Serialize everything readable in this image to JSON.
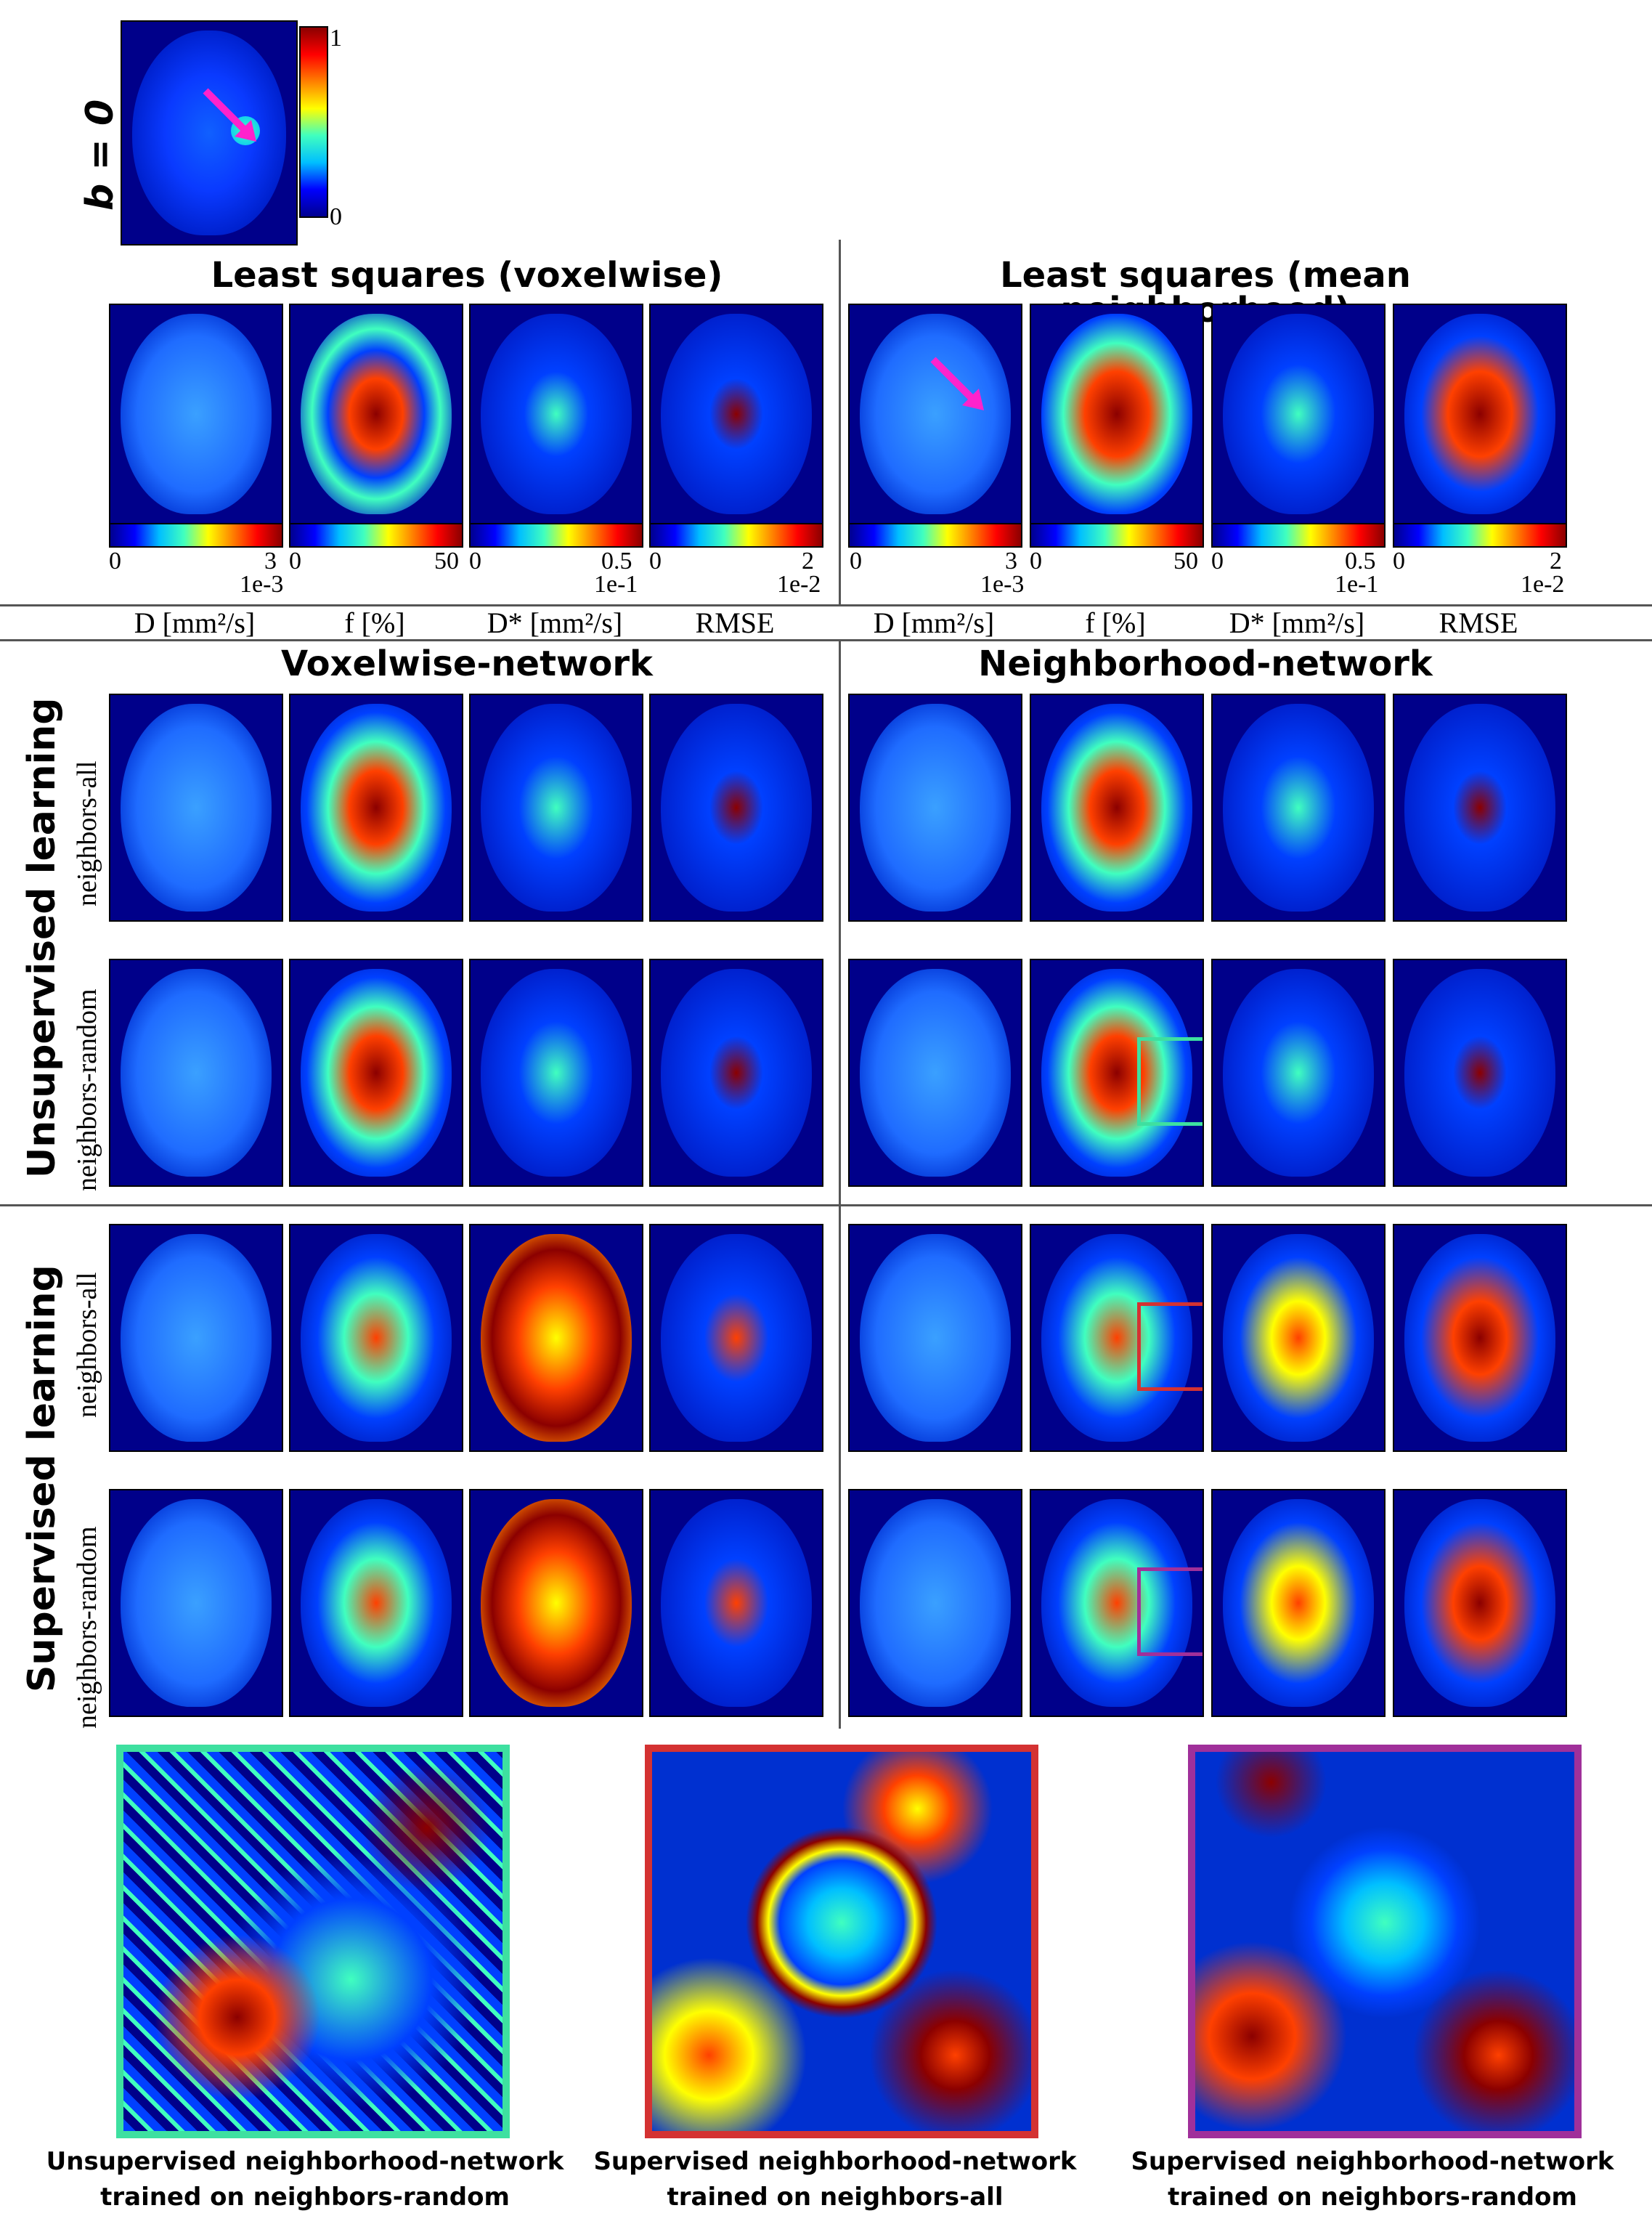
{
  "top_map": {
    "label": "b = 0",
    "colorbar_max": "1",
    "colorbar_min": "0",
    "arrow_color": "#ff22cc"
  },
  "sections": {
    "ls_voxelwise": "Least squares (voxelwise)",
    "ls_mean": "Least squares (mean neighborhood)",
    "voxelwise_network": "Voxelwise-network",
    "neighborhood_network": "Neighborhood-network"
  },
  "colorbars": [
    {
      "min": "0",
      "max": "3",
      "scale": "1e-3"
    },
    {
      "min": "0",
      "max": "50",
      "scale": ""
    },
    {
      "min": "0",
      "max": "0.5",
      "scale": "1e-1"
    },
    {
      "min": "0",
      "max": "2",
      "scale": "1e-2"
    }
  ],
  "params": [
    "D [mm²/s]",
    "f [%]",
    "D* [mm²/s]",
    "RMSE"
  ],
  "row_groups": {
    "unsupervised": "Unsupervised learning",
    "supervised": "Supervised learning"
  },
  "row_sublabels": {
    "all": "neighbors-all",
    "random": "neighbors-random"
  },
  "roi_colors": {
    "teal": "#3ee0a0",
    "red": "#d43232",
    "purple": "#a0309a"
  },
  "zoom_captions": [
    {
      "line1": "Unsupervised neighborhood-network",
      "line2": "trained on neighbors-random"
    },
    {
      "line1": "Supervised neighborhood-network",
      "line2": "trained on neighbors-all"
    },
    {
      "line1": "Supervised neighborhood-network",
      "line2": "trained on neighbors-random"
    }
  ]
}
